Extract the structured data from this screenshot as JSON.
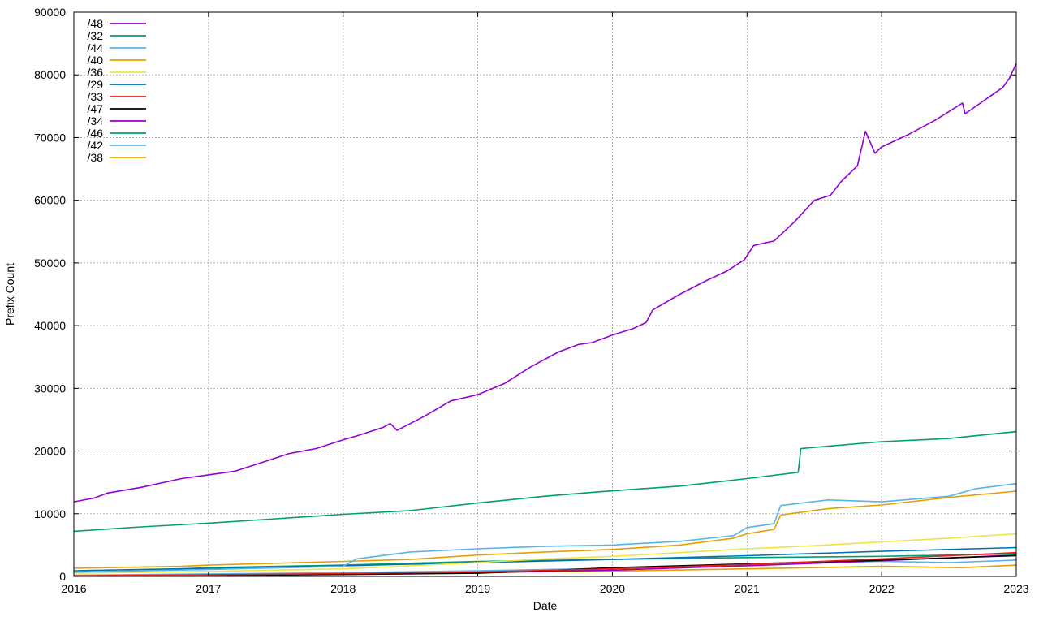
{
  "chart_data": {
    "type": "line",
    "xlabel": "Date",
    "ylabel": "Prefix Count",
    "xlim": [
      2016,
      2023
    ],
    "ylim": [
      0,
      90000
    ],
    "x_ticks": [
      "2016",
      "2017",
      "2018",
      "2019",
      "2020",
      "2021",
      "2022",
      "2023"
    ],
    "y_ticks": [
      "0",
      "10000",
      "20000",
      "30000",
      "40000",
      "50000",
      "60000",
      "70000",
      "80000",
      "90000"
    ],
    "grid": true,
    "legend_position": "top-left",
    "series": [
      {
        "name": "/48",
        "color": "#9400d3",
        "x": [
          2016.0,
          2016.15,
          2016.25,
          2016.5,
          2016.8,
          2017.0,
          2017.2,
          2017.4,
          2017.6,
          2017.8,
          2018.0,
          2018.1,
          2018.3,
          2018.35,
          2018.4,
          2018.6,
          2018.8,
          2019.0,
          2019.2,
          2019.4,
          2019.6,
          2019.75,
          2019.85,
          2020.0,
          2020.15,
          2020.25,
          2020.3,
          2020.5,
          2020.7,
          2020.85,
          2020.98,
          2021.05,
          2021.2,
          2021.35,
          2021.5,
          2021.62,
          2021.7,
          2021.82,
          2021.88,
          2021.95,
          2022.0,
          2022.2,
          2022.4,
          2022.6,
          2022.62,
          2022.8,
          2022.9,
          2022.95,
          2023.0
        ],
        "y": [
          11900,
          12500,
          13300,
          14200,
          15600,
          16200,
          16800,
          18200,
          19600,
          20400,
          21800,
          22400,
          23800,
          24400,
          23300,
          25500,
          28000,
          29000,
          30800,
          33500,
          35800,
          37000,
          37300,
          38500,
          39500,
          40500,
          42500,
          45000,
          47200,
          48700,
          50500,
          52800,
          53500,
          56500,
          60000,
          60800,
          63000,
          65500,
          71000,
          67500,
          68500,
          70500,
          72800,
          75500,
          73800,
          76500,
          78000,
          79500,
          81800
        ]
      },
      {
        "name": "/32",
        "color": "#009e73",
        "x": [
          2016.0,
          2016.5,
          2017.0,
          2017.5,
          2018.0,
          2018.5,
          2019.0,
          2019.5,
          2019.9,
          2020.5,
          2021.0,
          2021.38,
          2021.4,
          2022.0,
          2022.5,
          2023.0
        ],
        "y": [
          7200,
          7900,
          8500,
          9200,
          9900,
          10500,
          11700,
          12800,
          13500,
          14400,
          15600,
          16600,
          20400,
          21500,
          22000,
          23100
        ]
      },
      {
        "name": "/44",
        "color": "#56b4e9",
        "x": [
          2016.0,
          2017.0,
          2018.0,
          2018.1,
          2018.5,
          2019.0,
          2019.5,
          2020.0,
          2020.5,
          2020.9,
          2021.0,
          2021.2,
          2021.25,
          2021.6,
          2022.0,
          2022.5,
          2022.7,
          2023.0
        ],
        "y": [
          700,
          1100,
          1600,
          2800,
          3900,
          4400,
          4800,
          5000,
          5600,
          6500,
          7800,
          8400,
          11300,
          12200,
          11900,
          12800,
          14000,
          14800
        ]
      },
      {
        "name": "/40",
        "color": "#e69f00",
        "x": [
          2016.0,
          2016.8,
          2017.0,
          2017.5,
          2018.0,
          2018.5,
          2019.0,
          2019.5,
          2020.0,
          2020.5,
          2020.9,
          2021.0,
          2021.2,
          2021.25,
          2021.6,
          2022.0,
          2022.5,
          2023.0
        ],
        "y": [
          1300,
          1600,
          1800,
          2100,
          2400,
          2700,
          3400,
          3900,
          4300,
          5000,
          6100,
          6800,
          7500,
          9800,
          10800,
          11400,
          12600,
          13600
        ]
      },
      {
        "name": "/36",
        "color": "#f0e442",
        "x": [
          2016.0,
          2017.0,
          2018.0,
          2018.5,
          2019.0,
          2019.5,
          2020.0,
          2020.5,
          2021.0,
          2021.5,
          2022.0,
          2022.5,
          2023.0
        ],
        "y": [
          500,
          800,
          1200,
          1700,
          2200,
          2800,
          3200,
          3800,
          4400,
          4900,
          5500,
          6100,
          6800
        ]
      },
      {
        "name": "/29",
        "color": "#0072b2",
        "x": [
          2016.0,
          2017.0,
          2018.0,
          2019.0,
          2020.0,
          2021.0,
          2022.0,
          2023.0
        ],
        "y": [
          900,
          1300,
          1700,
          2200,
          2700,
          3300,
          4000,
          4600
        ]
      },
      {
        "name": "/33",
        "color": "#e51e10",
        "x": [
          2016.0,
          2017.0,
          2018.0,
          2019.0,
          2020.0,
          2021.0,
          2022.0,
          2023.0
        ],
        "y": [
          100,
          250,
          450,
          700,
          1200,
          1900,
          2800,
          3800
        ]
      },
      {
        "name": "/47",
        "color": "#000000",
        "x": [
          2016.0,
          2017.0,
          2018.0,
          2019.0,
          2019.5,
          2020.0,
          2021.0,
          2022.0,
          2023.0
        ],
        "y": [
          50,
          150,
          300,
          500,
          900,
          1400,
          2000,
          2600,
          3300
        ]
      },
      {
        "name": "/34",
        "color": "#9400d3",
        "x": [
          2016.0,
          2017.0,
          2018.0,
          2019.0,
          2020.0,
          2021.0,
          2022.0,
          2023.0
        ],
        "y": [
          80,
          200,
          350,
          600,
          1000,
          1700,
          2500,
          3400
        ]
      },
      {
        "name": "/46",
        "color": "#009e73",
        "x": [
          2016.0,
          2016.5,
          2017.0,
          2018.0,
          2019.0,
          2020.0,
          2021.0,
          2022.0,
          2023.0
        ],
        "y": [
          600,
          900,
          1400,
          1800,
          2400,
          2700,
          3000,
          3200,
          3600
        ]
      },
      {
        "name": "/42",
        "color": "#56b4e9",
        "x": [
          2016.0,
          2017.0,
          2018.0,
          2019.0,
          2020.0,
          2021.0,
          2022.0,
          2022.5,
          2023.0
        ],
        "y": [
          200,
          400,
          600,
          900,
          1300,
          1900,
          2400,
          2200,
          2600
        ]
      },
      {
        "name": "/38",
        "color": "#e69f00",
        "x": [
          2016.0,
          2017.0,
          2018.0,
          2019.0,
          2020.0,
          2021.0,
          2022.0,
          2022.6,
          2023.0
        ],
        "y": [
          150,
          300,
          500,
          650,
          850,
          1200,
          1600,
          1400,
          1800
        ]
      }
    ]
  }
}
